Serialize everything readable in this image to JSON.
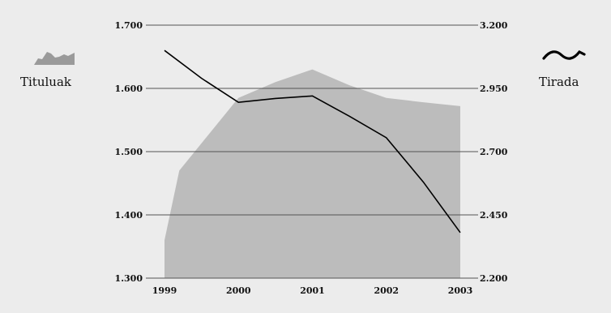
{
  "chart_data": {
    "type": "area",
    "x": [
      "1999",
      "2000",
      "2001",
      "2002",
      "2003"
    ],
    "left_axis": {
      "range": [
        1300,
        1700
      ],
      "ticks": [
        "1.300",
        "1.400",
        "1.500",
        "1.600",
        "1.700"
      ],
      "tick_values": [
        1300,
        1400,
        1500,
        1600,
        1700
      ]
    },
    "right_axis": {
      "range": [
        2200,
        3200
      ],
      "ticks": [
        "2.200",
        "2.450",
        "2.700",
        "2.950",
        "3.200"
      ],
      "tick_values": [
        2200,
        2450,
        2700,
        2950,
        3200
      ]
    },
    "grid": true,
    "series": [
      {
        "name": "Tituluak",
        "kind": "area",
        "axis": "left",
        "x": [
          1999,
          1999.2,
          2000,
          2000.5,
          2001,
          2001.5,
          2002,
          2002.5,
          2003
        ],
        "values": [
          1360,
          1470,
          1585,
          1610,
          1630,
          1605,
          1585,
          1578,
          1572
        ],
        "color": "#bcbcbc",
        "legend_position": "left"
      },
      {
        "name": "Tirada",
        "kind": "line",
        "axis": "right",
        "x": [
          1999,
          1999.5,
          2000,
          2000.5,
          2001,
          2001.5,
          2002,
          2002.5,
          2003
        ],
        "values": [
          3100,
          2990,
          2895,
          2910,
          2920,
          2840,
          2755,
          2580,
          2380
        ],
        "color": "#000000",
        "legend_position": "right"
      }
    ]
  }
}
